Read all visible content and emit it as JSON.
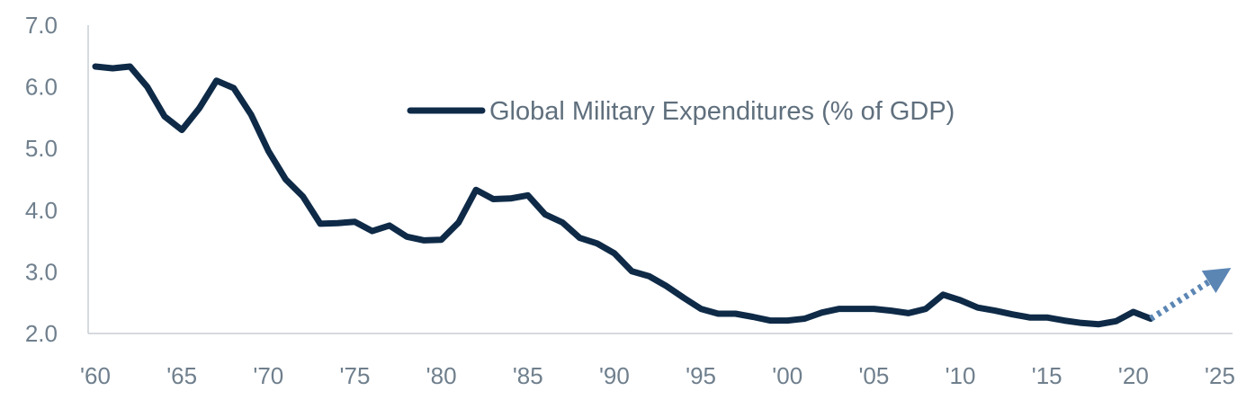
{
  "chart_data": {
    "type": "line",
    "title": "",
    "xlabel": "",
    "ylabel": "",
    "xlim": [
      1960,
      2025
    ],
    "ylim": [
      2.0,
      7.0
    ],
    "grid": false,
    "legend_position": "top-center",
    "x_tick_values": [
      1960,
      1965,
      1970,
      1975,
      1980,
      1985,
      1990,
      1995,
      2000,
      2005,
      2010,
      2015,
      2020,
      2025
    ],
    "x_tick_labels": [
      "'60",
      "'65",
      "'70",
      "'75",
      "'80",
      "'85",
      "'90",
      "'95",
      "'00",
      "'05",
      "'10",
      "'15",
      "'20",
      "'25"
    ],
    "y_tick_values": [
      2.0,
      3.0,
      4.0,
      5.0,
      6.0,
      7.0
    ],
    "y_tick_labels": [
      "2.0",
      "3.0",
      "4.0",
      "5.0",
      "6.0",
      "7.0"
    ],
    "series": [
      {
        "name": "Global Military Expenditures (% of GDP)",
        "color": "#0e2a47",
        "x": [
          1960,
          1961,
          1962,
          1963,
          1964,
          1965,
          1966,
          1967,
          1968,
          1969,
          1970,
          1971,
          1972,
          1973,
          1974,
          1975,
          1976,
          1977,
          1978,
          1979,
          1980,
          1981,
          1982,
          1983,
          1984,
          1985,
          1986,
          1987,
          1988,
          1989,
          1990,
          1991,
          1992,
          1993,
          1994,
          1995,
          1996,
          1997,
          1998,
          1999,
          2000,
          2001,
          2002,
          2003,
          2004,
          2005,
          2006,
          2007,
          2008,
          2009,
          2010,
          2011,
          2012,
          2013,
          2014,
          2015,
          2016,
          2017,
          2018,
          2019,
          2020,
          2021
        ],
        "values": [
          6.33,
          6.3,
          6.33,
          6.0,
          5.52,
          5.3,
          5.65,
          6.1,
          5.98,
          5.55,
          4.96,
          4.5,
          4.22,
          3.78,
          3.79,
          3.81,
          3.66,
          3.75,
          3.57,
          3.51,
          3.52,
          3.8,
          4.33,
          4.18,
          4.19,
          4.24,
          3.93,
          3.8,
          3.55,
          3.46,
          3.3,
          3.01,
          2.93,
          2.77,
          2.58,
          2.4,
          2.32,
          2.32,
          2.27,
          2.21,
          2.21,
          2.24,
          2.34,
          2.4,
          2.4,
          2.4,
          2.37,
          2.33,
          2.4,
          2.63,
          2.54,
          2.42,
          2.37,
          2.31,
          2.26,
          2.26,
          2.21,
          2.17,
          2.15,
          2.2,
          2.35,
          2.24
        ]
      }
    ],
    "projection": {
      "style": "dotted-arrow",
      "color": "#5b86b4",
      "from": [
        2021,
        2.24
      ],
      "to": [
        2025,
        2.95
      ]
    }
  }
}
